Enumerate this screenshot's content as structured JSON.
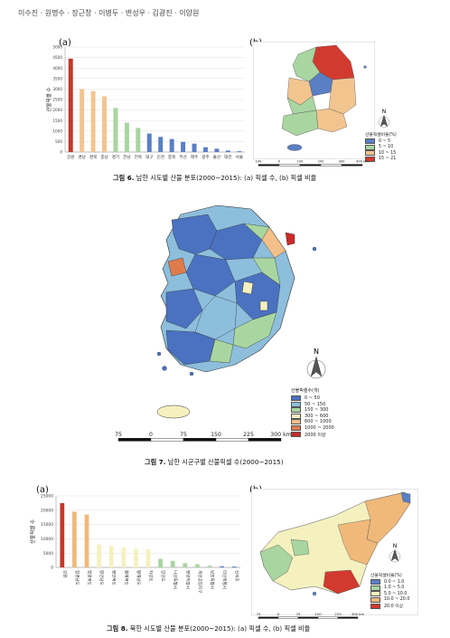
{
  "header": {
    "authors": "이수진 · 원명수 · 장근창 · 이병두 · 변성우 · 김광진 · 이양원"
  },
  "figure6": {
    "panel_a": "(a)",
    "panel_b": "(b)",
    "caption_label": "그림 6.",
    "caption_text": " 남한 시도별 산불 분포(2000~2015): (a) 픽셀 수, (b) 픽셀 비율",
    "legend_title": "산불픽셀비율(%)",
    "legend": [
      {
        "label": "0 ~ 5",
        "color": "#5a7fc4"
      },
      {
        "label": "5 ~ 10",
        "color": "#a8d5a0"
      },
      {
        "label": "10 ~ 15",
        "color": "#f2c58f"
      },
      {
        "label": "15 ~ 21",
        "color": "#d23a2f"
      }
    ],
    "scale_ticks": [
      "100",
      "0",
      "100",
      "200",
      "300",
      "400 km"
    ],
    "north": "N"
  },
  "figure7": {
    "caption_label": "그림 7.",
    "caption_text": " 남한 시군구별 산불픽셀 수(2000~2015)",
    "legend_title": "산불픽셀수(개)",
    "legend": [
      {
        "label": "0 ~ 50",
        "color": "#4a72c0"
      },
      {
        "label": "50 ~ 150",
        "color": "#8dbedc"
      },
      {
        "label": "150 ~ 300",
        "color": "#a9d6a0"
      },
      {
        "label": "300 ~ 600",
        "color": "#f5f1bf"
      },
      {
        "label": "600 ~ 1000",
        "color": "#f3c089"
      },
      {
        "label": "1000 ~ 2000",
        "color": "#e07b4d"
      },
      {
        "label": "2000 이상",
        "color": "#c92a2a"
      }
    ],
    "scale_ticks": [
      "75",
      "0",
      "75",
      "150",
      "225",
      "300 km"
    ],
    "north": "N"
  },
  "figure8": {
    "panel_a": "(a)",
    "panel_b": "(b)",
    "caption_label": "그림 8.",
    "caption_text": " 북한 시도별 산불 분포(2000~2015): (a) 픽셀 수, (b) 픽셀 비율",
    "legend_title": "산불픽셀비율(%)",
    "legend": [
      {
        "label": "0.0 ~ 1.0",
        "color": "#5a7fc4"
      },
      {
        "label": "1.0 ~ 5.0",
        "color": "#a8d5a0"
      },
      {
        "label": "5.0 ~ 10.0",
        "color": "#f5f1bf"
      },
      {
        "label": "10.0 ~ 20.0",
        "color": "#f0b97a"
      },
      {
        "label": "20.0 이상",
        "color": "#d23a2f"
      }
    ],
    "scale_ticks": [
      "75",
      "0",
      "75",
      "150",
      "225",
      "300 km"
    ],
    "north": "N"
  },
  "chart_data": [
    {
      "type": "bar",
      "ylabel": "산불픽셀 수",
      "ylim": [
        0,
        5000
      ],
      "yticks": [
        0,
        500,
        1000,
        1500,
        2000,
        2500,
        3000,
        3500,
        4000,
        4500,
        5000
      ],
      "categories": [
        "강원",
        "경남",
        "경북",
        "충남",
        "경기",
        "전남",
        "전북",
        "대구",
        "인천",
        "충북",
        "부산",
        "제주",
        "광주",
        "울산",
        "대전",
        "서울"
      ],
      "values": [
        4450,
        3000,
        2900,
        2650,
        2100,
        1400,
        1150,
        880,
        720,
        620,
        480,
        400,
        230,
        160,
        70,
        40
      ],
      "colors": [
        "#c0392b",
        "#f2c58f",
        "#f2c58f",
        "#f2c58f",
        "#a8d5a0",
        "#a8d5a0",
        "#a8d5a0",
        "#5a7fc4",
        "#5a7fc4",
        "#5a7fc4",
        "#5a7fc4",
        "#5a7fc4",
        "#5a7fc4",
        "#5a7fc4",
        "#5a7fc4",
        "#5a7fc4"
      ]
    },
    {
      "type": "bar",
      "ylabel": "산불픽셀 수",
      "ylim": [
        0,
        25000
      ],
      "yticks": [
        0,
        5000,
        10000,
        15000,
        20000,
        25000
      ],
      "categories": [
        "강원",
        "함경남도",
        "함경북도",
        "평안남도",
        "평안북도",
        "황해북도",
        "황해남도",
        "자강도",
        "양강도",
        "나선특별시",
        "평양직할시",
        "개성공업지구",
        "남포특별시",
        "라선특별시",
        "신의주"
      ],
      "values": [
        22500,
        19500,
        18500,
        8000,
        7500,
        7000,
        6500,
        6300,
        3000,
        2300,
        1500,
        1100,
        600,
        400,
        300
      ],
      "colors": [
        "#c0392b",
        "#f0b97a",
        "#f0b97a",
        "#f5f1bf",
        "#f5f1bf",
        "#f5f1bf",
        "#f5f1bf",
        "#f5f1bf",
        "#a8d5a0",
        "#a8d5a0",
        "#a8d5a0",
        "#a8d5a0",
        "#a8d5a0",
        "#5a7fc4",
        "#5a7fc4"
      ]
    }
  ]
}
